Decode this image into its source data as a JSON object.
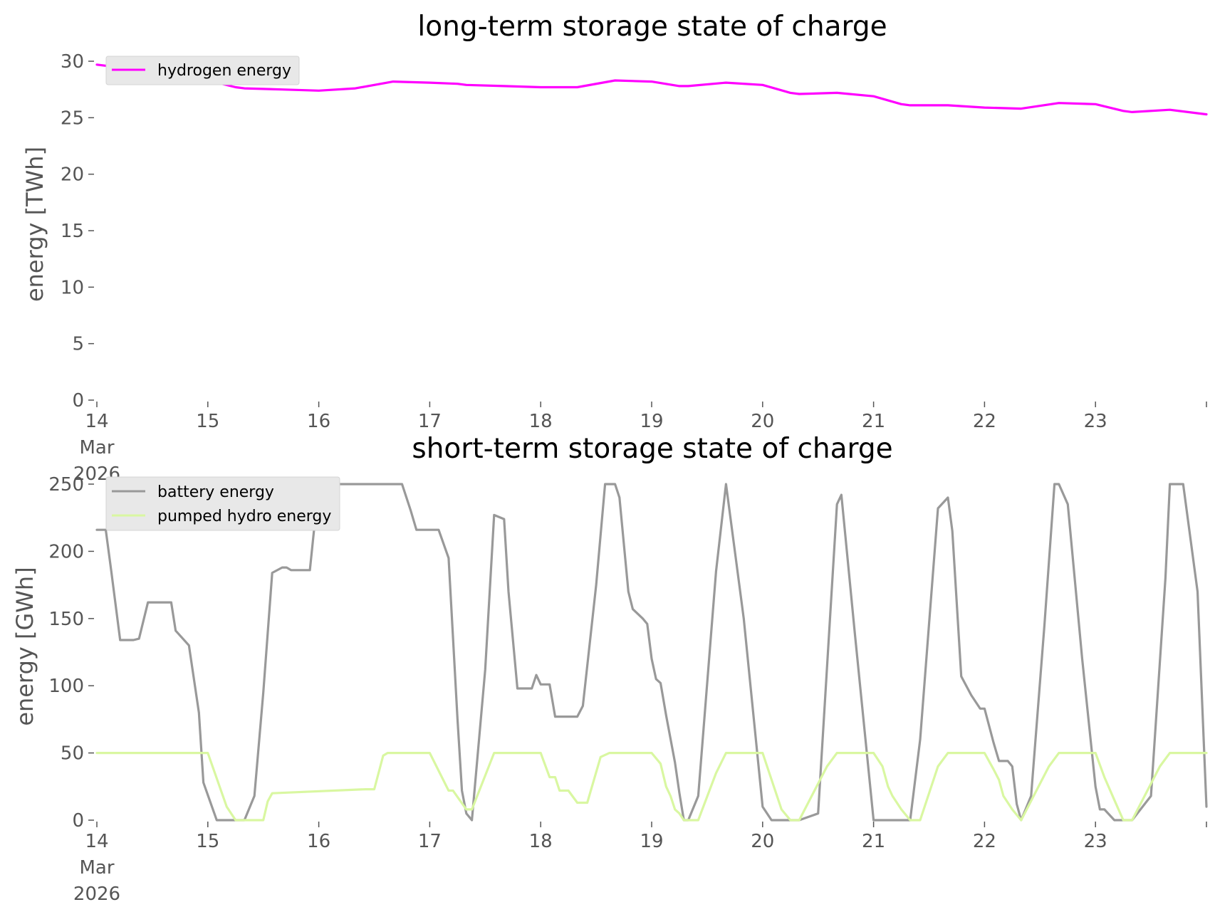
{
  "charts": [
    {
      "type": "line",
      "title": "long-term storage state of charge",
      "ylabel": "energy [TWh]",
      "xlabel": "",
      "x_tick_labels": [
        "14\nMar\n2026",
        "15",
        "16",
        "17",
        "18",
        "19",
        "20",
        "21",
        "22",
        "23"
      ],
      "y_tick_labels": [
        "0",
        "5",
        "10",
        "15",
        "20",
        "25",
        "30"
      ],
      "legend": [
        "hydrogen energy"
      ]
    },
    {
      "type": "line",
      "title": "short-term storage state of charge",
      "ylabel": "energy [GWh]",
      "xlabel": "",
      "x_tick_labels": [
        "14\nMar\n2026",
        "15",
        "16",
        "17",
        "18",
        "19",
        "20",
        "21",
        "22",
        "23"
      ],
      "y_tick_labels": [
        "0",
        "50",
        "100",
        "150",
        "200",
        "250"
      ],
      "legend": [
        "battery energy",
        "pumped hydro energy"
      ]
    }
  ],
  "chart_data": [
    {
      "type": "line",
      "title": "long-term storage state of charge",
      "xlabel": "",
      "ylabel": "energy [TWh]",
      "x_unit": "days in March 2026",
      "xlim": [
        14,
        24
      ],
      "ylim": [
        0,
        30
      ],
      "grid": false,
      "legend_position": "upper left",
      "series": [
        {
          "name": "hydrogen energy",
          "color": "#ff00ff",
          "x": [
            14,
            14.33,
            14.67,
            15,
            15.25,
            15.33,
            15.67,
            16,
            16.33,
            16.67,
            17,
            17.25,
            17.33,
            17.67,
            18,
            18.33,
            18.67,
            19,
            19.25,
            19.33,
            19.67,
            20,
            20.25,
            20.33,
            20.67,
            21,
            21.25,
            21.33,
            21.67,
            22,
            22.33,
            22.67,
            23,
            23.25,
            23.33,
            23.67,
            24
          ],
          "y": [
            29.7,
            29.3,
            28.9,
            28.3,
            27.7,
            27.6,
            27.5,
            27.4,
            27.6,
            28.2,
            28.1,
            28.0,
            27.9,
            27.8,
            27.7,
            27.7,
            28.3,
            28.2,
            27.8,
            27.8,
            28.1,
            27.9,
            27.2,
            27.1,
            27.2,
            26.9,
            26.2,
            26.1,
            26.1,
            25.9,
            25.8,
            26.3,
            26.2,
            25.6,
            25.5,
            25.7,
            25.3
          ]
        }
      ]
    },
    {
      "type": "line",
      "title": "short-term storage state of charge",
      "xlabel": "",
      "ylabel": "energy [GWh]",
      "x_unit": "days in March 2026",
      "xlim": [
        14,
        24
      ],
      "ylim": [
        0,
        250
      ],
      "grid": false,
      "legend_position": "upper left",
      "series": [
        {
          "name": "battery energy",
          "color": "#999999",
          "x": [
            14,
            14.08,
            14.13,
            14.21,
            14.33,
            14.38,
            14.46,
            14.58,
            14.67,
            14.71,
            14.83,
            14.92,
            14.96,
            15.08,
            15.17,
            15.25,
            15.33,
            15.42,
            15.5,
            15.58,
            15.67,
            15.71,
            15.75,
            15.83,
            15.92,
            16,
            16.08,
            16.25,
            16.5,
            16.75,
            16.83,
            16.88,
            17.04,
            17.08,
            17.17,
            17.25,
            17.29,
            17.33,
            17.38,
            17.5,
            17.58,
            17.67,
            17.71,
            17.79,
            17.83,
            17.92,
            17.96,
            18.0,
            18.08,
            18.13,
            18.17,
            18.33,
            18.38,
            18.5,
            18.58,
            18.67,
            18.71,
            18.79,
            18.83,
            18.92,
            18.96,
            19.0,
            19.04,
            19.08,
            19.13,
            19.21,
            19.25,
            19.29,
            19.33,
            19.42,
            19.58,
            19.67,
            19.83,
            20.0,
            20.08,
            20.25,
            20.33,
            20.5,
            20.67,
            20.71,
            20.83,
            21.0,
            21.08,
            21.25,
            21.33,
            21.42,
            21.58,
            21.67,
            21.71,
            21.79,
            21.88,
            21.96,
            22.0,
            22.08,
            22.13,
            22.21,
            22.25,
            22.29,
            22.33,
            22.42,
            22.54,
            22.63,
            22.67,
            22.75,
            22.88,
            23.0,
            23.04,
            23.08,
            23.17,
            23.25,
            23.33,
            23.5,
            23.63,
            23.67,
            23.79,
            23.92,
            24.0
          ],
          "y": [
            216,
            216,
            185,
            134,
            134,
            135,
            162,
            162,
            162,
            141,
            130,
            80,
            28,
            0,
            0,
            0,
            0,
            18,
            95,
            184,
            188,
            188,
            186,
            186,
            186,
            250,
            250,
            250,
            250,
            250,
            230,
            216,
            216,
            216,
            195,
            75,
            22,
            5,
            0,
            112,
            227,
            224,
            170,
            98,
            98,
            98,
            108,
            101,
            101,
            77,
            77,
            77,
            85,
            175,
            250,
            250,
            240,
            170,
            157,
            150,
            146,
            120,
            105,
            102,
            78,
            43,
            20,
            0,
            0,
            18,
            185,
            250,
            150,
            10,
            0,
            0,
            0,
            5,
            235,
            242,
            140,
            0,
            0,
            0,
            0,
            60,
            232,
            240,
            215,
            107,
            93,
            83,
            83,
            58,
            44,
            44,
            40,
            12,
            0,
            18,
            145,
            250,
            250,
            235,
            120,
            25,
            8,
            8,
            0,
            0,
            0,
            18,
            180,
            250,
            250,
            170,
            10
          ]
        },
        {
          "name": "pumped hydro energy",
          "color": "#d9f7a1",
          "x": [
            14,
            15,
            15.17,
            15.25,
            15.42,
            15.5,
            15.54,
            15.58,
            16.42,
            16.5,
            16.58,
            16.62,
            17.0,
            17.17,
            17.21,
            17.33,
            17.38,
            17.58,
            17.92,
            18.0,
            18.08,
            18.13,
            18.17,
            18.25,
            18.33,
            18.42,
            18.54,
            18.62,
            18.96,
            19.0,
            19.08,
            19.13,
            19.17,
            19.21,
            19.25,
            19.29,
            19.42,
            19.58,
            19.67,
            19.96,
            20.0,
            20.17,
            20.25,
            20.33,
            20.58,
            20.67,
            20.96,
            21.0,
            21.08,
            21.13,
            21.17,
            21.25,
            21.33,
            21.42,
            21.58,
            21.67,
            21.92,
            22.0,
            22.08,
            22.13,
            22.17,
            22.25,
            22.33,
            22.58,
            22.67,
            22.96,
            23.0,
            23.08,
            23.17,
            23.25,
            23.33,
            23.58,
            23.67,
            24.0
          ],
          "y": [
            50,
            50,
            10,
            0,
            0,
            0,
            14,
            20,
            23,
            23,
            48,
            50,
            50,
            22,
            22,
            8,
            8,
            50,
            50,
            50,
            32,
            32,
            22,
            22,
            13,
            13,
            47,
            50,
            50,
            50,
            42,
            25,
            18,
            8,
            5,
            0,
            0,
            35,
            50,
            50,
            50,
            8,
            0,
            0,
            40,
            50,
            50,
            50,
            40,
            25,
            18,
            8,
            0,
            0,
            40,
            50,
            50,
            50,
            38,
            30,
            18,
            8,
            0,
            40,
            50,
            50,
            50,
            32,
            15,
            0,
            0,
            40,
            50,
            50
          ]
        }
      ]
    }
  ]
}
